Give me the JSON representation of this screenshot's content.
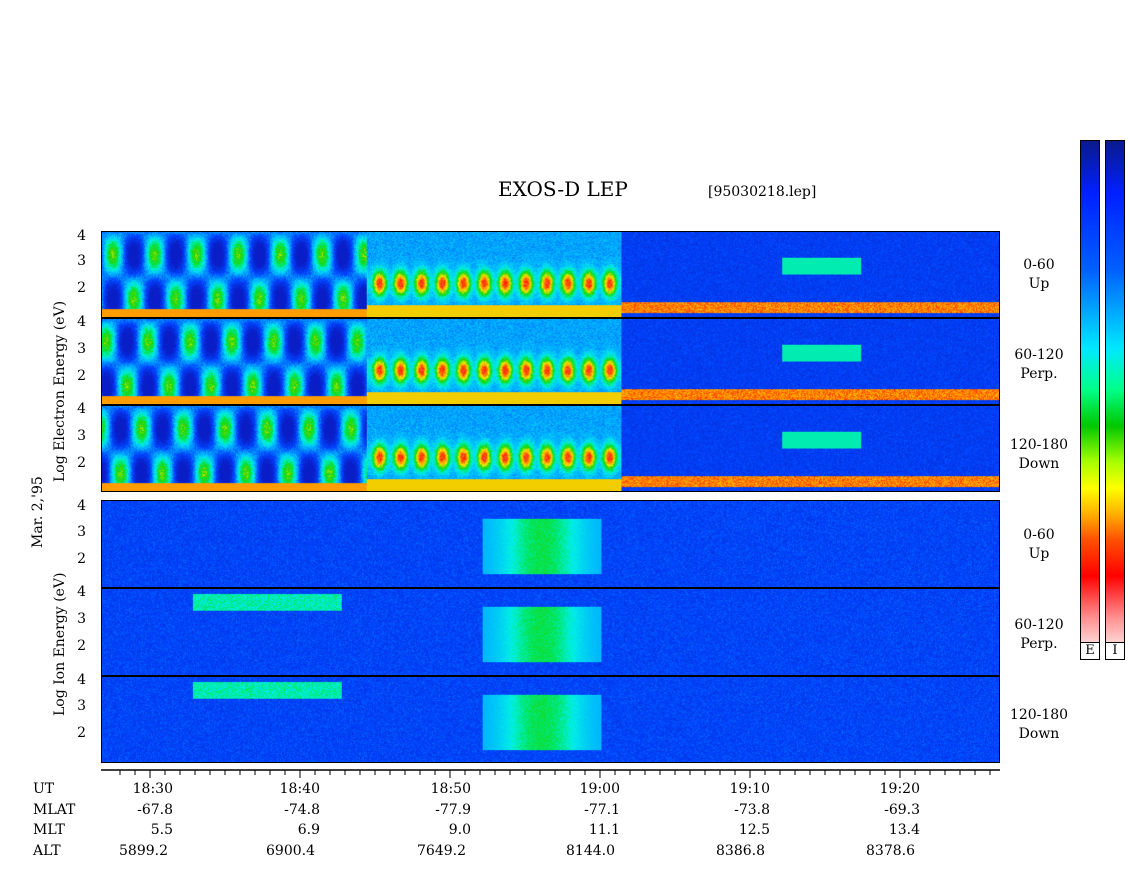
{
  "header": {
    "title": "EXOS-D LEP",
    "file": "[95030218.lep]"
  },
  "electron_label": {
    "line1": "Log  Electron  Energy (eV)"
  },
  "ion_label": {
    "line1": "Log  Ion  Energy (eV)"
  },
  "date_label": "Mar. 2,'95",
  "panels": [
    {
      "range": "0-60",
      "dir": "Up"
    },
    {
      "range": "60-120",
      "dir": "Perp."
    },
    {
      "range": "120-180",
      "dir": "Down"
    },
    {
      "range": "0-60",
      "dir": "Up"
    },
    {
      "range": "60-120",
      "dir": "Perp."
    },
    {
      "range": "120-180",
      "dir": "Down"
    }
  ],
  "yticks": [
    "4",
    "3",
    "2"
  ],
  "colorbar": {
    "e_label": "E",
    "i_label": "I"
  },
  "axis": {
    "row_labels": [
      "UT",
      "MLAT",
      "MLT",
      "ALT"
    ],
    "columns": [
      {
        "ut": "18:30",
        "mlat": "-67.8",
        "mlt": "5.5",
        "alt": "5899.2"
      },
      {
        "ut": "18:40",
        "mlat": "-74.8",
        "mlt": "6.9",
        "alt": "6900.4"
      },
      {
        "ut": "18:50",
        "mlat": "-77.9",
        "mlt": "9.0",
        "alt": "7649.2"
      },
      {
        "ut": "19:00",
        "mlat": "-77.1",
        "mlt": "11.1",
        "alt": "8144.0"
      },
      {
        "ut": "19:10",
        "mlat": "-73.8",
        "mlt": "12.5",
        "alt": "8386.8"
      },
      {
        "ut": "19:20",
        "mlat": "-69.3",
        "mlt": "13.4",
        "alt": "8378.6"
      }
    ]
  },
  "chart_data": {
    "type": "heatmap",
    "title": "EXOS-D LEP",
    "xlabel": "UT",
    "x_ticks": [
      "18:30",
      "18:40",
      "18:50",
      "19:00",
      "19:10",
      "19:20"
    ],
    "ylabel_electron": "Log Electron Energy (eV)",
    "ylabel_ion": "Log Ion Energy (eV)",
    "ylim": [
      1,
      4.2
    ],
    "y_ticks": [
      2,
      3,
      4
    ],
    "panels": [
      "Electron 0-60 Up",
      "Electron 60-120 Perp.",
      "Electron 120-180 Down",
      "Ion 0-60 Up",
      "Ion 60-120 Perp.",
      "Ion 120-180 Down"
    ]
  }
}
